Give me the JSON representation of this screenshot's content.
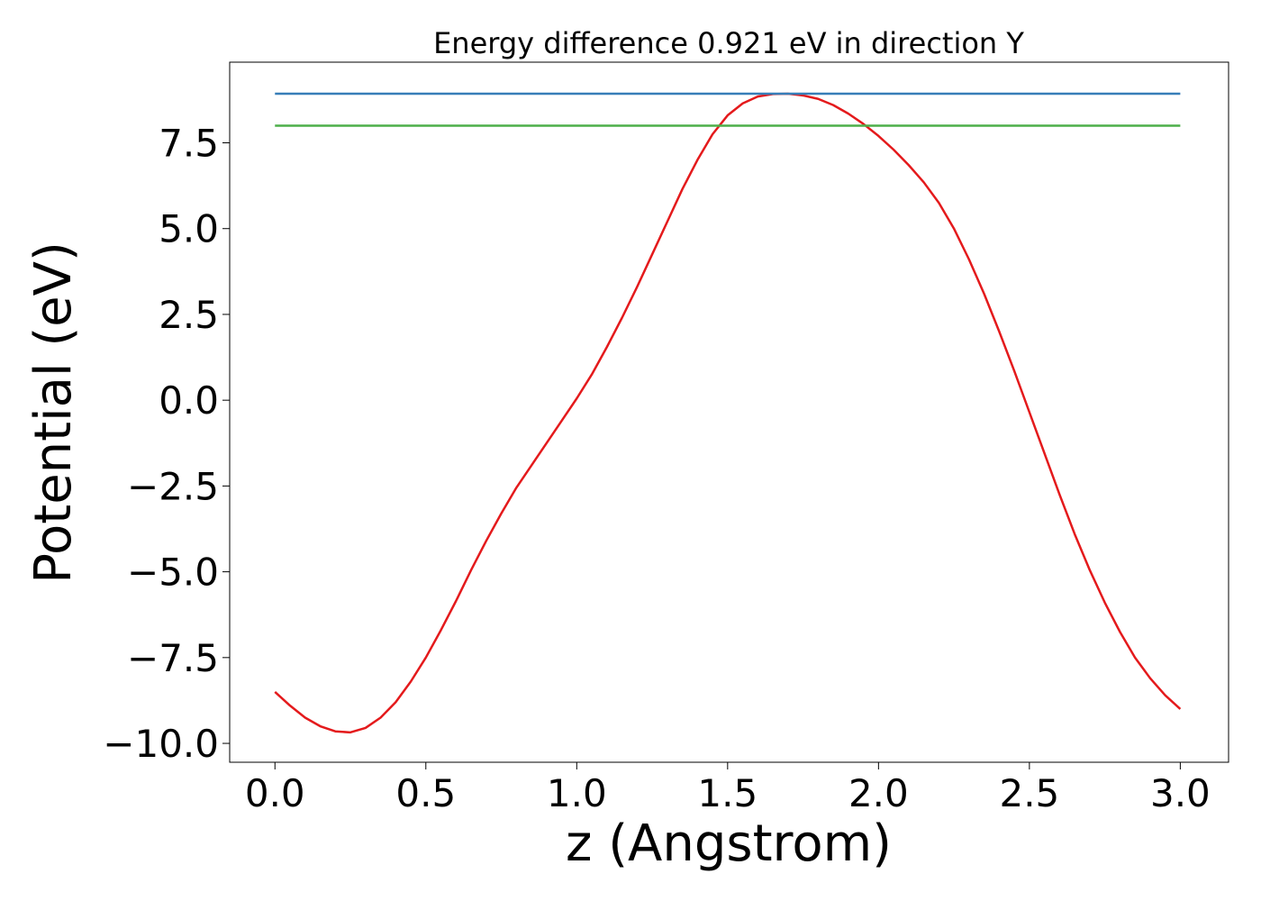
{
  "chart_data": {
    "type": "line",
    "title": "Energy difference 0.921 eV in direction Y",
    "xlabel": "z (Angstrom)",
    "ylabel": "Potential (eV)",
    "xlim": [
      -0.15,
      3.16
    ],
    "ylim": [
      -10.55,
      9.85
    ],
    "xticks": [
      0.0,
      0.5,
      1.0,
      1.5,
      2.0,
      2.5,
      3.0
    ],
    "xtick_labels": [
      "0.0",
      "0.5",
      "1.0",
      "1.5",
      "2.0",
      "2.5",
      "3.0"
    ],
    "yticks": [
      -10.0,
      -7.5,
      -5.0,
      -2.5,
      0.0,
      2.5,
      5.0,
      7.5
    ],
    "ytick_labels": [
      "−10.0",
      "−7.5",
      "−5.0",
      "−2.5",
      "0.0",
      "2.5",
      "5.0",
      "7.5"
    ],
    "grid": false,
    "series": [
      {
        "color": "#e41a1c",
        "x": [
          0.0,
          0.05,
          0.1,
          0.15,
          0.2,
          0.25,
          0.3,
          0.35,
          0.4,
          0.45,
          0.5,
          0.55,
          0.6,
          0.65,
          0.7,
          0.75,
          0.8,
          0.85,
          0.9,
          0.95,
          1.0,
          1.05,
          1.1,
          1.15,
          1.2,
          1.25,
          1.3,
          1.35,
          1.4,
          1.45,
          1.5,
          1.55,
          1.6,
          1.65,
          1.7,
          1.75,
          1.8,
          1.85,
          1.9,
          1.95,
          2.0,
          2.05,
          2.1,
          2.15,
          2.2,
          2.25,
          2.3,
          2.35,
          2.4,
          2.45,
          2.5,
          2.55,
          2.6,
          2.65,
          2.7,
          2.75,
          2.8,
          2.85,
          2.9,
          2.95,
          3.0
        ],
        "y": [
          -8.5,
          -8.9,
          -9.25,
          -9.5,
          -9.65,
          -9.68,
          -9.55,
          -9.25,
          -8.8,
          -8.2,
          -7.5,
          -6.7,
          -5.85,
          -4.95,
          -4.1,
          -3.3,
          -2.55,
          -1.9,
          -1.25,
          -0.6,
          0.05,
          0.75,
          1.55,
          2.4,
          3.3,
          4.25,
          5.2,
          6.15,
          7.0,
          7.75,
          8.3,
          8.65,
          8.85,
          8.92,
          8.93,
          8.88,
          8.78,
          8.6,
          8.35,
          8.05,
          7.7,
          7.3,
          6.85,
          6.35,
          5.75,
          5.0,
          4.1,
          3.1,
          2.0,
          0.85,
          -0.35,
          -1.55,
          -2.75,
          -3.9,
          -4.95,
          -5.9,
          -6.75,
          -7.5,
          -8.1,
          -8.6,
          -9.0
        ]
      },
      {
        "color": "#377eb8",
        "x": [
          0.0,
          3.0
        ],
        "y": [
          8.93,
          8.93
        ]
      },
      {
        "color": "#4daf4a",
        "x": [
          0.0,
          3.0
        ],
        "y": [
          8.0,
          8.0
        ]
      }
    ]
  }
}
